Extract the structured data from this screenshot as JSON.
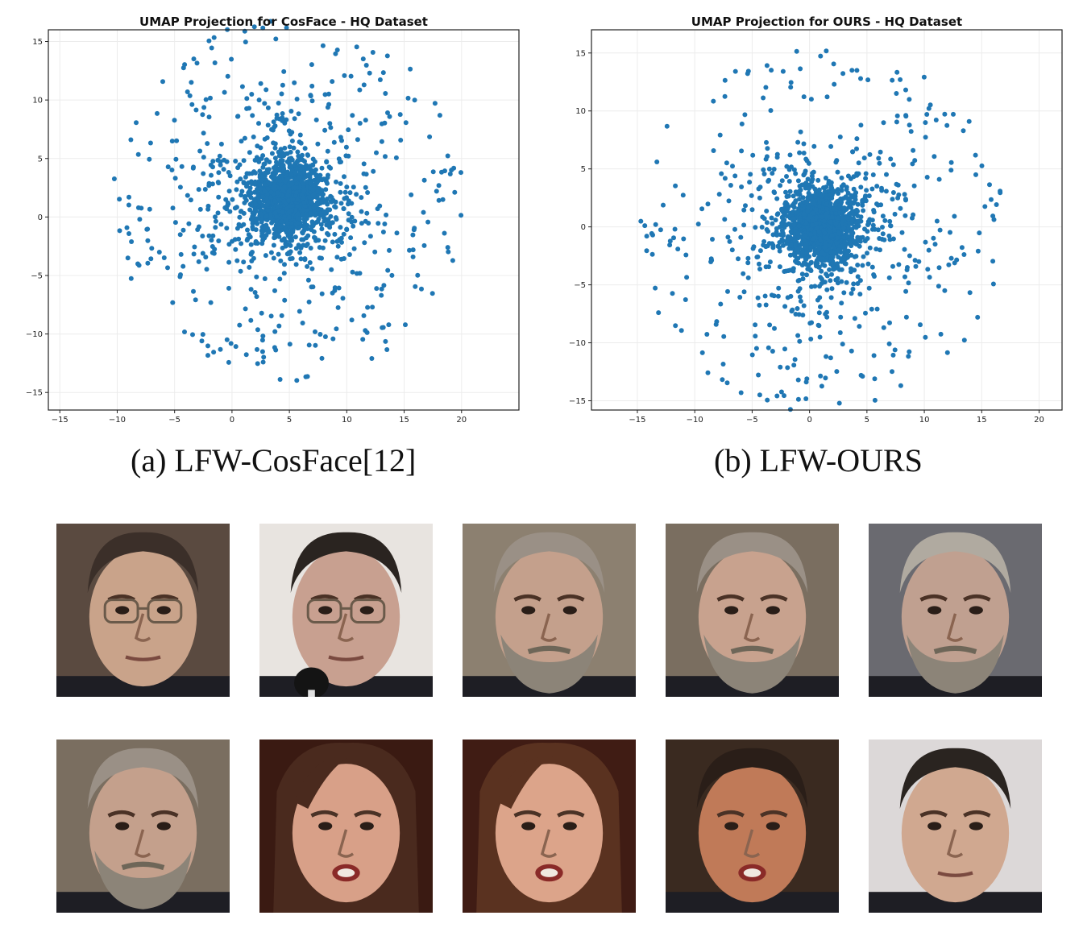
{
  "chart_data": [
    {
      "type": "scatter",
      "title": "UMAP Projection for CosFace - HQ Dataset",
      "xlabel": "",
      "ylabel": "",
      "xlim": [
        -16,
        25
      ],
      "ylim": [
        -16.5,
        16
      ],
      "xticks": [
        -15,
        -10,
        -5,
        0,
        5,
        10,
        15,
        20
      ],
      "yticks": [
        -15,
        -10,
        -5,
        0,
        5,
        10,
        15
      ],
      "grid": true,
      "color": "#1f77b4",
      "cluster_center": [
        5,
        1.5
      ],
      "outer_radius": 15.5,
      "point_count": 1800,
      "description_seed": 7
    },
    {
      "type": "scatter",
      "title": "UMAP Projection for OURS - HQ Dataset",
      "xlabel": "",
      "ylabel": "",
      "xlim": [
        -19,
        22
      ],
      "ylim": [
        -15.8,
        17
      ],
      "xticks": [
        -15,
        -10,
        -5,
        0,
        5,
        10,
        15,
        20
      ],
      "yticks": [
        -15,
        -10,
        -5,
        0,
        5,
        10,
        15
      ],
      "grid": true,
      "color": "#1f77b4",
      "cluster_center": [
        1,
        0
      ],
      "outer_radius": 16,
      "point_count": 1800,
      "description_seed": 13
    }
  ],
  "captions": {
    "a": "(a) LFW-CosFace[12]",
    "b": "(b) LFW-OURS"
  },
  "faces": [
    {
      "name": "face-older-man-glasses",
      "skin": "#c9a38a",
      "hair": "#3b2f29",
      "bg": "#5a4a40",
      "glasses": true,
      "beard": false
    },
    {
      "name": "face-man-glasses-microphone",
      "skin": "#c8a090",
      "hair": "#2a2420",
      "bg": "#e8e4e0",
      "glasses": true,
      "beard": false
    },
    {
      "name": "face-bearded-gray-man-1",
      "skin": "#c4a08c",
      "hair": "#9a9086",
      "bg": "#8c8070",
      "glasses": false,
      "beard": true
    },
    {
      "name": "face-bearded-gray-man-2",
      "skin": "#c8a28e",
      "hair": "#9a9086",
      "bg": "#7a6e60",
      "glasses": false,
      "beard": true
    },
    {
      "name": "face-bearded-gray-man-3",
      "skin": "#c0a090",
      "hair": "#b0aaa0",
      "bg": "#6a6a70",
      "glasses": false,
      "beard": true
    },
    {
      "name": "face-bearded-gray-man-4",
      "skin": "#c4a08c",
      "hair": "#9a9086",
      "bg": "#7a6e60",
      "glasses": false,
      "beard": true
    },
    {
      "name": "face-young-woman-1",
      "skin": "#d8a088",
      "hair": "#4a2a1e",
      "bg": "#3a1a12",
      "glasses": false,
      "beard": false
    },
    {
      "name": "face-young-woman-2",
      "skin": "#dca48a",
      "hair": "#5a3220",
      "bg": "#401c14",
      "glasses": false,
      "beard": false
    },
    {
      "name": "face-man-dark-hair-1",
      "skin": "#c07a58",
      "hair": "#2a1e18",
      "bg": "#3a2a20",
      "glasses": false,
      "beard": false
    },
    {
      "name": "face-man-dark-hair-2",
      "skin": "#d0a890",
      "hair": "#2a2420",
      "bg": "#dcd8d8",
      "glasses": false,
      "beard": false
    }
  ]
}
